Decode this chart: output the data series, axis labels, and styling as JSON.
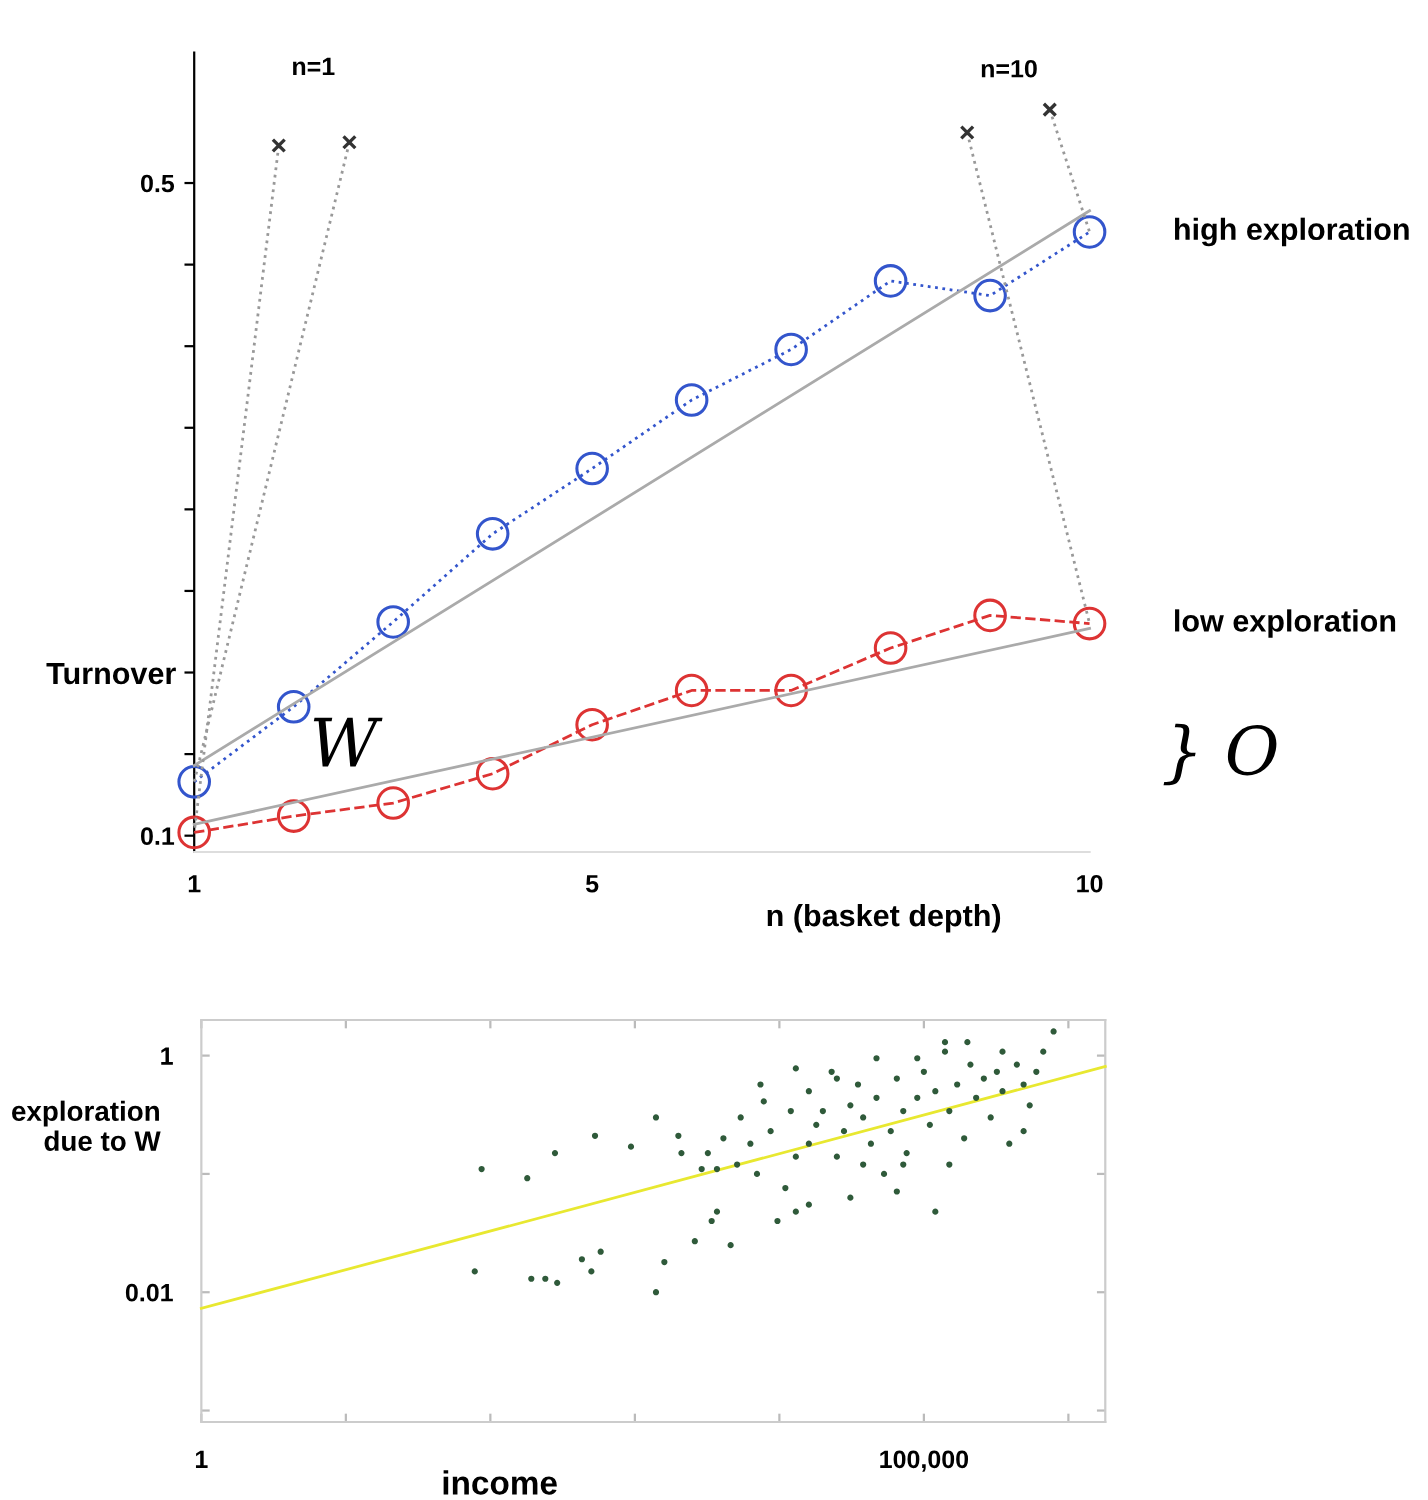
{
  "chart_data": [
    {
      "type": "line",
      "xlabel": "n (basket depth)",
      "ylabel": "Turnover",
      "x": [
        1,
        2,
        3,
        4,
        5,
        6,
        7,
        8,
        9,
        10
      ],
      "xlim": [
        1,
        10
      ],
      "ylim": [
        0.09,
        0.58
      ],
      "xticks": [
        1,
        5,
        10
      ],
      "yticks": [
        0.1,
        {
          "value": 0.15,
          "label": null
        },
        {
          "value": 0.2,
          "label": null
        },
        {
          "value": 0.25,
          "label": null
        },
        {
          "value": 0.3,
          "label": null
        },
        {
          "value": 0.35,
          "label": null
        },
        {
          "value": 0.4,
          "label": null
        },
        {
          "value": 0.45,
          "label": null
        },
        0.5
      ],
      "series": [
        {
          "name": "high exploration",
          "color": "#3355cc",
          "marker": "circle",
          "line_style": "dotted",
          "values": [
            0.133,
            0.179,
            0.231,
            0.285,
            0.325,
            0.367,
            0.398,
            0.44,
            0.431,
            0.47
          ]
        },
        {
          "name": "low exploration",
          "color": "#dd3333",
          "marker": "circle",
          "line_style": "dashed",
          "values": [
            0.102,
            0.112,
            0.12,
            0.138,
            0.168,
            0.189,
            0.189,
            0.215,
            0.235,
            0.23
          ]
        },
        {
          "color": "#aaaaaa",
          "line_style": "solid",
          "x": [
            1,
            10
          ],
          "values": [
            0.143,
            0.483
          ]
        },
        {
          "color": "#aaaaaa",
          "line_style": "solid",
          "x": [
            1,
            10
          ],
          "values": [
            0.107,
            0.227
          ]
        },
        {
          "color": "#999999",
          "line_style": "dotted",
          "x": [
            1.85,
            1
          ],
          "values": [
            0.523,
            0.102
          ]
        },
        {
          "color": "#999999",
          "line_style": "dotted",
          "x": [
            2.56,
            1
          ],
          "values": [
            0.525,
            0.133
          ]
        },
        {
          "color": "#999999",
          "line_style": "dotted",
          "x": [
            8.77,
            10
          ],
          "values": [
            0.531,
            0.23
          ]
        },
        {
          "color": "#999999",
          "line_style": "dotted",
          "x": [
            9.6,
            10
          ],
          "values": [
            0.545,
            0.47
          ]
        },
        {
          "type": "scatter",
          "color": "#333333",
          "marker": "cross",
          "x": [
            1.85,
            2.56,
            8.77,
            9.6
          ],
          "values": [
            0.523,
            0.525,
            0.531,
            0.545
          ]
        }
      ],
      "annotations": [
        "n=1",
        "n=10",
        "W",
        "} O"
      ]
    },
    {
      "type": "scatter",
      "xlabel": "income",
      "ylabel": "exploration\ndue to W",
      "log": "xy",
      "xlim": [
        1,
        1800000
      ],
      "ylim": [
        0.0008,
        2
      ],
      "xticks": [
        1,
        {
          "value": 10,
          "label": null
        },
        {
          "value": 100,
          "label": null
        },
        {
          "value": 1000,
          "label": null
        },
        {
          "value": 10000,
          "label": null
        },
        {
          "value": 100000,
          "label": "100,000"
        },
        {
          "value": 1000000,
          "label": null
        }
      ],
      "yticks": [
        {
          "value": 0.001,
          "label": null
        },
        0.01,
        {
          "value": 0.1,
          "label": null
        },
        1
      ],
      "series": [
        {
          "color": "#2f5a3a",
          "marker": "circle",
          "x": [
            78,
            192,
            240,
            290,
            430,
            500,
            580,
            1400,
            1600,
            2600,
            3400,
            4600,
            3700,
            180,
            87,
            530,
            940,
            280,
            1400,
            2000,
            2100,
            3200,
            4100,
            5100,
            7400,
            7800,
            7000,
            9700,
            11000,
            13000,
            13000,
            16000,
            18000,
            20000,
            25000,
            28000,
            31000,
            35000,
            38000,
            43000,
            47000,
            53000,
            59000,
            65000,
            72000,
            76000,
            90000,
            100000,
            110000,
            120000,
            120000,
            140000,
            150000,
            170000,
            190000,
            210000,
            230000,
            260000,
            290000,
            320000,
            350000,
            390000,
            440000,
            490000,
            540000,
            600000,
            670000,
            790000,
            200000,
            140000,
            25000,
            16000,
            38000,
            72000,
            31000,
            16000,
            6300,
            8700,
            12000,
            23000,
            47000,
            90000,
            350000,
            490000,
            150000,
            65000,
            13000,
            5400,
            3700,
            2900
          ],
          "values": [
            0.015,
            0.013,
            0.013,
            0.012,
            0.019,
            0.015,
            0.022,
            0.01,
            0.018,
            0.027,
            0.04,
            0.025,
            0.048,
            0.092,
            0.11,
            0.21,
            0.17,
            0.15,
            0.3,
            0.21,
            0.15,
            0.15,
            0.2,
            0.12,
            0.57,
            0.41,
            0.1,
            0.04,
            0.076,
            0.048,
            0.78,
            0.18,
            0.26,
            0.34,
            0.14,
            0.23,
            0.38,
            0.57,
            0.3,
            0.18,
            0.44,
            0.1,
            0.23,
            0.64,
            0.34,
            0.15,
            0.44,
            0.73,
            0.26,
            0.048,
            0.5,
            1.08,
            0.34,
            0.57,
            0.2,
            0.84,
            0.44,
            0.64,
            0.3,
            0.73,
            0.5,
            0.18,
            0.84,
            0.57,
            0.38,
            0.73,
            1.08,
            1.6,
            1.3,
            1.3,
            0.64,
            0.5,
            0.12,
            0.12,
            0.063,
            0.055,
            0.18,
            0.23,
            0.34,
            0.73,
            0.95,
            0.95,
            1.08,
            0.23,
            0.12,
            0.071,
            0.14,
            0.3,
            0.11,
            0.11
          ]
        },
        {
          "type": "line",
          "color": "#e8e830",
          "line_style": "solid",
          "x": [
            1,
            1800000
          ],
          "values": [
            0.0073,
            0.81
          ]
        }
      ]
    }
  ]
}
